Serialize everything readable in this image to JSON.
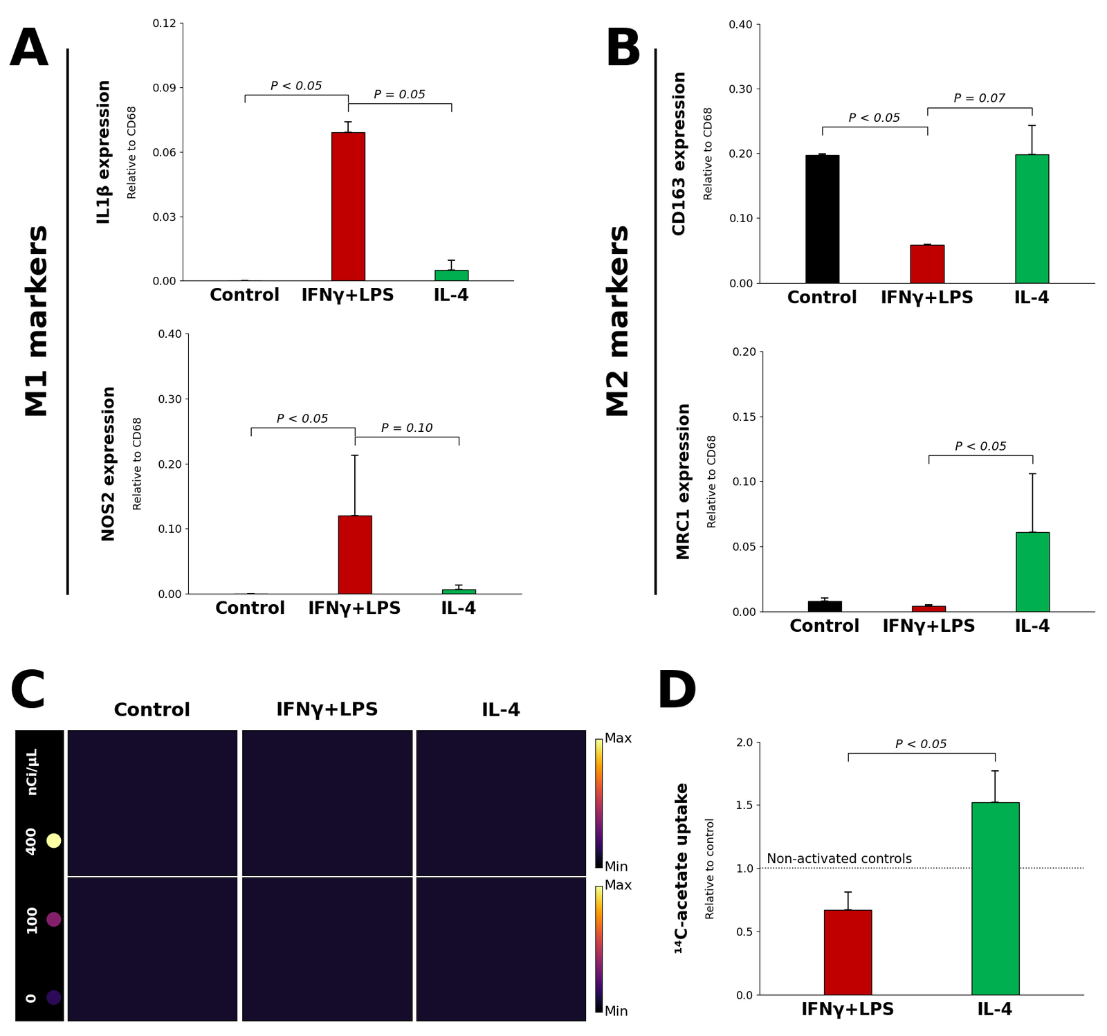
{
  "chart_data": [
    {
      "type": "bar",
      "panel": "A",
      "group_label": "M1 markers",
      "ylabel": "IL1β expression",
      "ylabel_sub": "Relative to CD68",
      "categories": [
        "Control",
        "IFNγ+LPS",
        "IL-4"
      ],
      "values": [
        0.0,
        0.069,
        0.005
      ],
      "errors": [
        0.0,
        0.005,
        0.0045
      ],
      "colors": [
        "#000000",
        "#c00000",
        "#00b050"
      ],
      "ylim": [
        0,
        0.12
      ],
      "yticks": [
        {
          "value": 0,
          "label": "0.00"
        },
        {
          "value": 0.03,
          "label": "0.03"
        },
        {
          "value": 0.06,
          "label": "0.06"
        },
        {
          "value": 0.09,
          "label": "0.09"
        },
        {
          "value": 0.12,
          "label": "0.12"
        }
      ],
      "annotations": [
        {
          "from": "Control",
          "to": "IFNγ+LPS",
          "text": "P < 0.05"
        },
        {
          "from": "IFNγ+LPS",
          "to": "IL-4",
          "text": "P = 0.05"
        }
      ]
    },
    {
      "type": "bar",
      "ylabel": "NOS2 expression",
      "ylabel_sub": "Relative to CD68",
      "categories": [
        "Control",
        "IFNγ+LPS",
        "IL-4"
      ],
      "values": [
        0.0,
        0.12,
        0.007
      ],
      "errors": [
        0.0,
        0.093,
        0.006
      ],
      "colors": [
        "#000000",
        "#c00000",
        "#00b050"
      ],
      "ylim": [
        0,
        0.4
      ],
      "yticks": [
        {
          "value": 0,
          "label": "0.00"
        },
        {
          "value": 0.1,
          "label": "0.10"
        },
        {
          "value": 0.2,
          "label": "0.20"
        },
        {
          "value": 0.3,
          "label": "0.30"
        },
        {
          "value": 0.4,
          "label": "0.40"
        }
      ],
      "annotations": [
        {
          "from": "Control",
          "to": "IFNγ+LPS",
          "text": "P < 0.05"
        },
        {
          "from": "IFNγ+LPS",
          "to": "IL-4",
          "text": "P = 0.10"
        }
      ]
    },
    {
      "type": "bar",
      "panel": "B",
      "group_label": "M2 markers",
      "ylabel": "CD163 expression",
      "ylabel_sub": "Relative to CD68",
      "categories": [
        "Control",
        "IFNγ+LPS",
        "IL-4"
      ],
      "values": [
        0.197,
        0.059,
        0.198
      ],
      "errors": [
        0.002,
        0.001,
        0.045
      ],
      "colors": [
        "#000000",
        "#c00000",
        "#00b050"
      ],
      "ylim": [
        0,
        0.4
      ],
      "yticks": [
        {
          "value": 0,
          "label": "0.00"
        },
        {
          "value": 0.1,
          "label": "0.10"
        },
        {
          "value": 0.2,
          "label": "0.20"
        },
        {
          "value": 0.3,
          "label": "0.30"
        },
        {
          "value": 0.4,
          "label": "0.40"
        }
      ],
      "annotations": [
        {
          "from": "Control",
          "to": "IFNγ+LPS",
          "text": "P < 0.05"
        },
        {
          "from": "IFNγ+LPS",
          "to": "IL-4",
          "text": "P = 0.07"
        }
      ]
    },
    {
      "type": "bar",
      "ylabel": "MRC1 expression",
      "ylabel_sub": "Relative to CD68",
      "categories": [
        "Control",
        "IFNγ+LPS",
        "IL-4"
      ],
      "values": [
        0.008,
        0.004,
        0.061
      ],
      "errors": [
        0.002,
        0.001,
        0.045
      ],
      "colors": [
        "#000000",
        "#c00000",
        "#00b050"
      ],
      "ylim": [
        0,
        0.2
      ],
      "yticks": [
        {
          "value": 0,
          "label": "0.00"
        },
        {
          "value": 0.05,
          "label": "0.05"
        },
        {
          "value": 0.1,
          "label": "0.10"
        },
        {
          "value": 0.15,
          "label": "0.15"
        },
        {
          "value": 0.2,
          "label": "0.20"
        }
      ],
      "annotations": [
        {
          "from": "IFNγ+LPS",
          "to": "IL-4",
          "text": "P < 0.05"
        }
      ]
    },
    {
      "type": "bar",
      "panel": "D",
      "ylabel": "¹⁴C-acetate uptake",
      "ylabel_sub": "Relative to control",
      "categories": [
        "IFNγ+LPS",
        "IL-4"
      ],
      "values": [
        0.67,
        1.52
      ],
      "errors": [
        0.14,
        0.25
      ],
      "colors": [
        "#c00000",
        "#00b050"
      ],
      "ylim": [
        0,
        2.0
      ],
      "yticks": [
        {
          "value": 0,
          "label": "0.0"
        },
        {
          "value": 0.5,
          "label": "0.5"
        },
        {
          "value": 1.0,
          "label": "1.0"
        },
        {
          "value": 1.5,
          "label": "1.5"
        },
        {
          "value": 2.0,
          "label": "2.0"
        }
      ],
      "reference_line": {
        "value": 1.0,
        "label": "Non-activated controls"
      },
      "annotations": [
        {
          "from": "IFNγ+LPS",
          "to": "IL-4",
          "text": "P < 0.05"
        }
      ]
    }
  ],
  "image_panel": {
    "panel": "C",
    "columns": [
      "Control",
      "IFNγ+LPS",
      "IL-4"
    ],
    "colorbar_labels": [
      "Max",
      "Min"
    ],
    "standards_label": "nCi/µL",
    "standards": [
      400,
      100,
      0
    ]
  }
}
